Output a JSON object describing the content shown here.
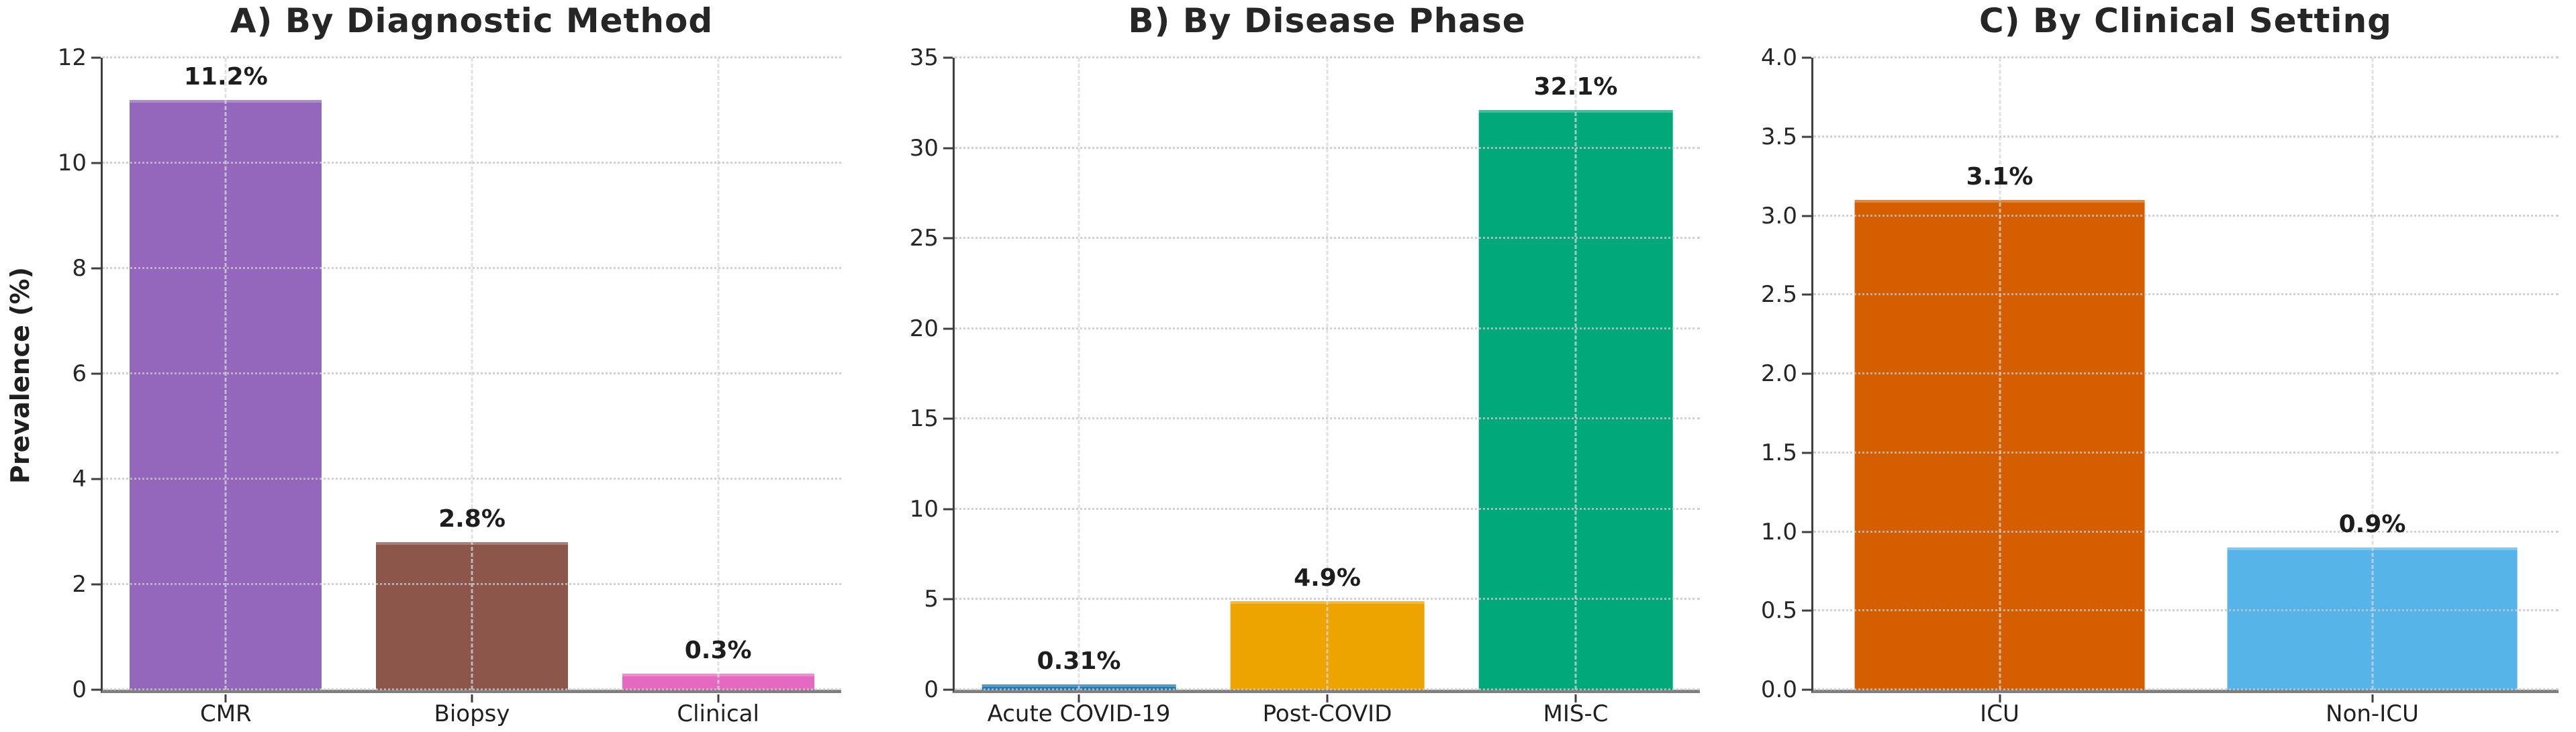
{
  "figure": {
    "background": "#ffffff",
    "text_color": "#262626",
    "grid_color": "#c6c6c6",
    "left_spine_color": "#3f3f3f",
    "bottom_spine_color": "#7f7f7f"
  },
  "chart_data": [
    {
      "type": "bar",
      "title": "A) By Diagnostic Method",
      "xlabel": "",
      "ylabel": "Prevalence (%)",
      "categories": [
        "CMR",
        "Biopsy",
        "Clinical"
      ],
      "values": [
        11.2,
        2.8,
        0.3
      ],
      "value_labels": [
        "11.2%",
        "2.8%",
        "0.3%"
      ],
      "colors": [
        "#9467bd",
        "#8c564b",
        "#e669c1"
      ],
      "ylim": [
        0,
        12
      ],
      "ytick_values": [
        0,
        2,
        4,
        6,
        8,
        10,
        12
      ],
      "ytick_labels": [
        "0",
        "2",
        "4",
        "6",
        "8",
        "10",
        "12"
      ],
      "grid": "horizontal dotted and vertical dashed, drawn above bars",
      "legend": "none"
    },
    {
      "type": "bar",
      "title": "B) By Disease Phase",
      "xlabel": "",
      "ylabel": "",
      "categories": [
        "Acute COVID-19",
        "Post-COVID",
        "MIS-C"
      ],
      "values": [
        0.31,
        4.9,
        32.1
      ],
      "value_labels": [
        "0.31%",
        "4.9%",
        "32.1%"
      ],
      "colors": [
        "#1f77b4",
        "#eea400",
        "#00a87a"
      ],
      "ylim": [
        0,
        35
      ],
      "ytick_values": [
        0,
        5,
        10,
        15,
        20,
        25,
        30,
        35
      ],
      "ytick_labels": [
        "0",
        "5",
        "10",
        "15",
        "20",
        "25",
        "30",
        "35"
      ],
      "grid": "horizontal dotted and vertical dashed, drawn above bars",
      "legend": "none"
    },
    {
      "type": "bar",
      "title": "C) By Clinical Setting",
      "xlabel": "",
      "ylabel": "",
      "categories": [
        "ICU",
        "Non-ICU"
      ],
      "values": [
        3.1,
        0.9
      ],
      "value_labels": [
        "3.1%",
        "0.9%"
      ],
      "colors": [
        "#d55f00",
        "#56b4e9"
      ],
      "ylim": [
        0,
        4
      ],
      "ytick_values": [
        0,
        0.5,
        1,
        1.5,
        2,
        2.5,
        3,
        3.5,
        4
      ],
      "ytick_labels": [
        "0.0",
        "0.5",
        "1.0",
        "1.5",
        "2.0",
        "2.5",
        "3.0",
        "3.5",
        "4.0"
      ],
      "grid": "horizontal dotted and vertical dashed, drawn above bars",
      "legend": "none"
    }
  ]
}
